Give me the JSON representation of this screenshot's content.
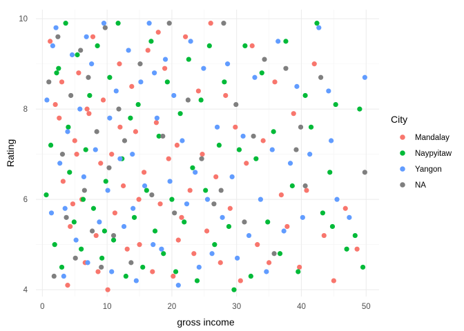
{
  "chart_data": {
    "type": "scatter",
    "xlabel": "gross income",
    "ylabel": "Rating",
    "xlim": [
      -1,
      52
    ],
    "ylim": [
      3.85,
      10.2
    ],
    "x_ticks": [
      0,
      10,
      20,
      30,
      40,
      50
    ],
    "y_ticks": [
      4,
      6,
      8,
      10
    ],
    "grid": true,
    "legend": {
      "title": "City",
      "placement": "right"
    },
    "series": [
      {
        "name": "Mandalay",
        "color": "#f8766d",
        "points": [
          [
            1.2,
            9.5
          ],
          [
            2.0,
            8.1
          ],
          [
            2.6,
            7.8
          ],
          [
            3.2,
            6.4
          ],
          [
            3.9,
            4.1
          ],
          [
            4.3,
            5.4
          ],
          [
            5.0,
            7.3
          ],
          [
            5.6,
            8.8
          ],
          [
            6.1,
            6.0
          ],
          [
            6.6,
            4.6
          ],
          [
            7.2,
            7.9
          ],
          [
            7.8,
            9.6
          ],
          [
            8.3,
            5.2
          ],
          [
            9.0,
            6.8
          ],
          [
            9.4,
            8.2
          ],
          [
            10.1,
            4.0
          ],
          [
            10.7,
            7.0
          ],
          [
            11.2,
            5.7
          ],
          [
            11.9,
            9.0
          ],
          [
            12.5,
            6.3
          ],
          [
            13.1,
            4.9
          ],
          [
            13.8,
            8.5
          ],
          [
            14.4,
            7.5
          ],
          [
            15.0,
            5.0
          ],
          [
            15.7,
            6.6
          ],
          [
            16.3,
            9.3
          ],
          [
            17.0,
            4.4
          ],
          [
            17.6,
            7.7
          ],
          [
            18.2,
            5.9
          ],
          [
            18.9,
            8.9
          ],
          [
            19.5,
            6.9
          ],
          [
            20.2,
            4.3
          ],
          [
            20.8,
            7.2
          ],
          [
            21.5,
            5.6
          ],
          [
            22.1,
            9.6
          ],
          [
            22.8,
            6.2
          ],
          [
            23.4,
            4.8
          ],
          [
            24.1,
            8.4
          ],
          [
            24.7,
            7.0
          ],
          [
            25.4,
            5.3
          ],
          [
            26.0,
            9.9
          ],
          [
            26.8,
            6.5
          ],
          [
            27.5,
            4.6
          ],
          [
            28.3,
            8.3
          ],
          [
            29.0,
            5.8
          ],
          [
            29.8,
            7.6
          ],
          [
            30.6,
            4.2
          ],
          [
            31.5,
            6.8
          ],
          [
            32.4,
            9.4
          ],
          [
            33.2,
            5.0
          ],
          [
            34.1,
            7.3
          ],
          [
            35.0,
            4.6
          ],
          [
            35.9,
            8.6
          ],
          [
            36.9,
            6.1
          ],
          [
            37.8,
            5.4
          ],
          [
            38.8,
            7.9
          ],
          [
            39.7,
            4.5
          ],
          [
            40.8,
            6.2
          ],
          [
            42.0,
            9.0
          ],
          [
            43.5,
            5.2
          ],
          [
            45.0,
            4.2
          ],
          [
            46.8,
            5.8
          ],
          [
            48.6,
            4.9
          ],
          [
            3.0,
            8.6
          ],
          [
            4.7,
            5.9
          ],
          [
            5.3,
            7.0
          ],
          [
            6.9,
            8.0
          ],
          [
            8.6,
            4.4
          ],
          [
            12.0,
            7.6
          ],
          [
            14.9,
            6.0
          ],
          [
            17.9,
            9.7
          ],
          [
            21.0,
            5.1
          ]
        ]
      },
      {
        "name": "Naypyitaw",
        "color": "#00ba38",
        "points": [
          [
            0.6,
            6.1
          ],
          [
            1.3,
            7.2
          ],
          [
            1.9,
            5.0
          ],
          [
            2.5,
            8.9
          ],
          [
            3.0,
            4.5
          ],
          [
            3.6,
            9.9
          ],
          [
            4.2,
            6.6
          ],
          [
            4.9,
            5.5
          ],
          [
            5.4,
            9.2
          ],
          [
            6.0,
            4.9
          ],
          [
            6.7,
            7.1
          ],
          [
            7.3,
            8.3
          ],
          [
            7.9,
            5.8
          ],
          [
            8.5,
            9.4
          ],
          [
            9.2,
            4.7
          ],
          [
            9.8,
            6.4
          ],
          [
            10.4,
            8.7
          ],
          [
            11.0,
            5.1
          ],
          [
            11.7,
            9.9
          ],
          [
            12.3,
            6.9
          ],
          [
            12.9,
            4.3
          ],
          [
            13.6,
            7.8
          ],
          [
            14.2,
            5.6
          ],
          [
            14.8,
            8.1
          ],
          [
            15.5,
            4.5
          ],
          [
            16.1,
            6.2
          ],
          [
            16.8,
            9.5
          ],
          [
            17.4,
            5.3
          ],
          [
            18.0,
            7.4
          ],
          [
            18.7,
            4.8
          ],
          [
            19.3,
            8.6
          ],
          [
            20.0,
            6.0
          ],
          [
            20.6,
            4.4
          ],
          [
            21.3,
            7.9
          ],
          [
            21.9,
            5.5
          ],
          [
            22.6,
            9.1
          ],
          [
            23.2,
            6.7
          ],
          [
            23.9,
            4.2
          ],
          [
            24.5,
            8.2
          ],
          [
            25.2,
            6.2
          ],
          [
            25.8,
            9.4
          ],
          [
            26.6,
            5.0
          ],
          [
            27.3,
            7.2
          ],
          [
            28.1,
            8.6
          ],
          [
            28.8,
            5.4
          ],
          [
            29.6,
            4.0
          ],
          [
            30.4,
            7.1
          ],
          [
            31.3,
            9.4
          ],
          [
            32.2,
            4.3
          ],
          [
            33.0,
            6.9
          ],
          [
            33.9,
            8.8
          ],
          [
            34.8,
            5.5
          ],
          [
            35.7,
            7.5
          ],
          [
            36.7,
            4.8
          ],
          [
            37.6,
            9.5
          ],
          [
            38.6,
            6.3
          ],
          [
            39.5,
            4.4
          ],
          [
            40.6,
            8.3
          ],
          [
            41.5,
            7.6
          ],
          [
            42.4,
            9.9
          ],
          [
            43.3,
            5.7
          ],
          [
            44.4,
            6.6
          ],
          [
            45.3,
            8.1
          ],
          [
            47.0,
            4.9
          ],
          [
            48.3,
            5.2
          ],
          [
            49.0,
            8.0
          ],
          [
            49.5,
            4.5
          ],
          [
            44.8,
            5.4
          ],
          [
            2.2,
            8.8
          ],
          [
            4.0,
            7.6
          ],
          [
            6.3,
            6.0
          ],
          [
            9.6,
            5.3
          ]
        ]
      },
      {
        "name": "Yangon",
        "color": "#619cff",
        "points": [
          [
            0.7,
            8.2
          ],
          [
            1.4,
            5.7
          ],
          [
            2.1,
            9.8
          ],
          [
            2.7,
            6.8
          ],
          [
            3.3,
            4.3
          ],
          [
            3.9,
            7.5
          ],
          [
            4.6,
            9.2
          ],
          [
            5.2,
            5.1
          ],
          [
            5.8,
            8.0
          ],
          [
            6.4,
            6.5
          ],
          [
            7.0,
            4.6
          ],
          [
            7.6,
            9.0
          ],
          [
            8.2,
            7.1
          ],
          [
            8.8,
            5.5
          ],
          [
            9.5,
            9.9
          ],
          [
            10.1,
            6.2
          ],
          [
            10.7,
            4.4
          ],
          [
            11.4,
            8.4
          ],
          [
            12.0,
            6.9
          ],
          [
            12.6,
            5.4
          ],
          [
            13.3,
            9.3
          ],
          [
            13.9,
            7.0
          ],
          [
            14.5,
            4.2
          ],
          [
            15.2,
            8.6
          ],
          [
            15.8,
            6.3
          ],
          [
            16.5,
            9.9
          ],
          [
            17.1,
            5.0
          ],
          [
            17.7,
            7.8
          ],
          [
            18.4,
            4.9
          ],
          [
            19.0,
            9.1
          ],
          [
            19.7,
            6.4
          ],
          [
            20.3,
            8.3
          ],
          [
            21.0,
            4.1
          ],
          [
            21.6,
            7.3
          ],
          [
            22.3,
            5.9
          ],
          [
            22.9,
            9.5
          ],
          [
            23.6,
            6.6
          ],
          [
            24.2,
            4.5
          ],
          [
            24.9,
            8.9
          ],
          [
            25.5,
            6.0
          ],
          [
            26.2,
            4.8
          ],
          [
            27.0,
            7.6
          ],
          [
            27.8,
            5.6
          ],
          [
            28.6,
            9.0
          ],
          [
            29.3,
            6.5
          ],
          [
            30.1,
            4.7
          ],
          [
            31.0,
            7.4
          ],
          [
            31.9,
            5.2
          ],
          [
            32.8,
            8.7
          ],
          [
            33.7,
            6.0
          ],
          [
            34.6,
            4.4
          ],
          [
            35.5,
            7.1
          ],
          [
            36.4,
            9.5
          ],
          [
            37.3,
            5.3
          ],
          [
            38.3,
            6.8
          ],
          [
            39.3,
            8.5
          ],
          [
            40.2,
            5.6
          ],
          [
            41.3,
            7.0
          ],
          [
            42.7,
            9.8
          ],
          [
            44.2,
            8.4
          ],
          [
            45.5,
            6.0
          ],
          [
            47.4,
            5.6
          ],
          [
            49.8,
            8.7
          ],
          [
            44.6,
            7.3
          ],
          [
            1.6,
            9.4
          ],
          [
            3.5,
            5.8
          ],
          [
            6.8,
            9.6
          ],
          [
            10.4,
            7.8
          ],
          [
            14.0,
            5.8
          ],
          [
            17.3,
            8.8
          ]
        ]
      },
      {
        "name": "NA",
        "color": "#7f7f7f",
        "points": [
          [
            1.0,
            8.6
          ],
          [
            1.8,
            4.3
          ],
          [
            2.4,
            9.6
          ],
          [
            3.1,
            7.0
          ],
          [
            3.7,
            5.6
          ],
          [
            4.4,
            8.3
          ],
          [
            5.1,
            4.7
          ],
          [
            5.9,
            9.3
          ],
          [
            6.5,
            6.2
          ],
          [
            7.1,
            8.7
          ],
          [
            7.7,
            5.3
          ],
          [
            8.4,
            7.5
          ],
          [
            9.1,
            4.5
          ],
          [
            9.7,
            9.8
          ],
          [
            10.3,
            6.7
          ],
          [
            11.0,
            5.2
          ],
          [
            11.8,
            8.0
          ],
          [
            12.7,
            7.3
          ],
          [
            13.7,
            4.6
          ],
          [
            15.1,
            9.0
          ],
          [
            16.9,
            6.1
          ],
          [
            18.6,
            7.4
          ],
          [
            20.4,
            5.7
          ],
          [
            22.5,
            8.2
          ],
          [
            24.6,
            6.9
          ],
          [
            26.5,
            5.9
          ],
          [
            28.0,
            9.9
          ],
          [
            29.9,
            8.1
          ],
          [
            31.2,
            5.5
          ],
          [
            32.6,
            7.4
          ],
          [
            34.3,
            9.1
          ],
          [
            35.8,
            4.8
          ],
          [
            37.6,
            8.9
          ],
          [
            39.2,
            7.1
          ],
          [
            40.6,
            6.3
          ],
          [
            43.0,
            8.7
          ],
          [
            49.8,
            6.6
          ],
          [
            39.9,
            7.6
          ],
          [
            27.6,
            6.2
          ],
          [
            19.6,
            9.9
          ]
        ]
      }
    ]
  }
}
